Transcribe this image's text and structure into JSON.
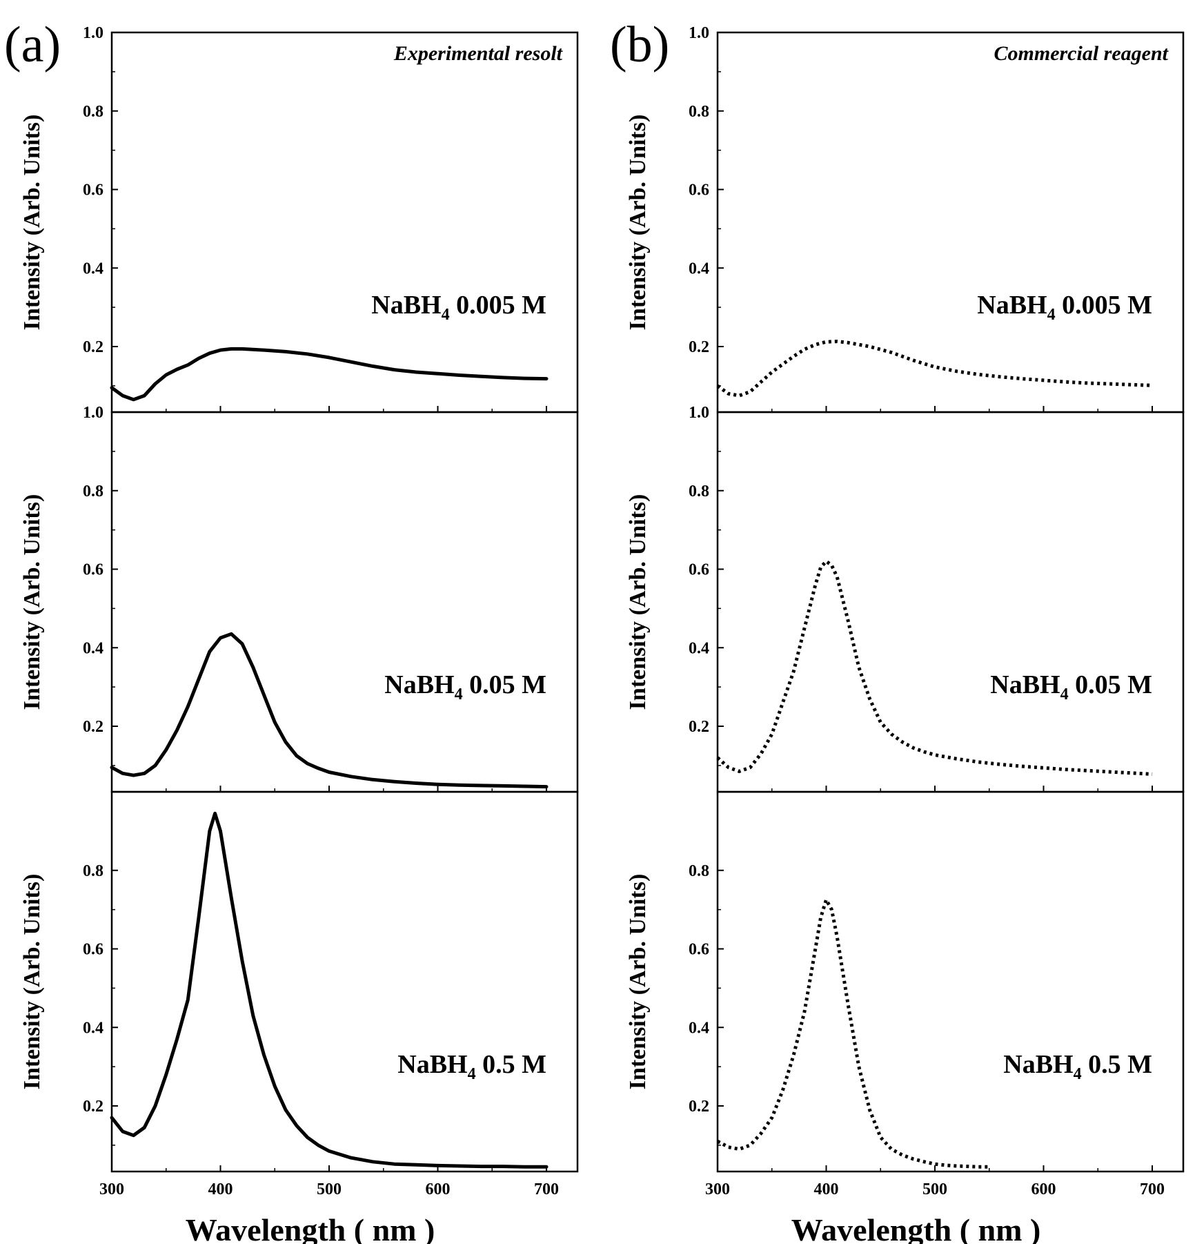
{
  "chart_data": [
    {
      "type": "line",
      "panel": "(a)",
      "column": 0,
      "row": 0,
      "corner_note": "Experimental resolt",
      "series_label": {
        "prefix": "NaBH",
        "sub": "4",
        "suffix": " 0.005 M"
      },
      "line_style": "solid",
      "ylabel": "Intensity (Arb. Units)",
      "xlabel": "",
      "xlim": [
        300,
        730
      ],
      "ylim": [
        0.04,
        1.0
      ],
      "xticks": [
        300,
        400,
        500,
        600,
        700
      ],
      "show_xtick_labels": false,
      "yticks": [
        1.0,
        0.8,
        0.6,
        0.4,
        0.2
      ],
      "ytick_labels": [
        "1.0",
        "0.8",
        "0.6",
        "0.4",
        "0.2"
      ],
      "series": [
        {
          "name": "NaBH4 0.005 M",
          "x": [
            300,
            310,
            320,
            330,
            340,
            350,
            360,
            370,
            380,
            390,
            400,
            410,
            420,
            440,
            460,
            480,
            500,
            520,
            540,
            560,
            580,
            600,
            620,
            640,
            660,
            680,
            700
          ],
          "y": [
            0.095,
            0.075,
            0.065,
            0.075,
            0.105,
            0.128,
            0.142,
            0.153,
            0.17,
            0.183,
            0.191,
            0.194,
            0.194,
            0.191,
            0.187,
            0.181,
            0.172,
            0.161,
            0.15,
            0.141,
            0.135,
            0.131,
            0.127,
            0.124,
            0.121,
            0.119,
            0.118
          ]
        }
      ]
    },
    {
      "type": "line",
      "panel": "",
      "column": 0,
      "row": 1,
      "corner_note": "",
      "series_label": {
        "prefix": "NaBH",
        "sub": "4",
        "suffix": " 0.05 M"
      },
      "line_style": "solid",
      "ylabel": "Intensity (Arb. Units)",
      "xlabel": "",
      "xlim": [
        300,
        730
      ],
      "ylim": [
        0.04,
        1.0
      ],
      "xticks": [
        300,
        400,
        500,
        600,
        700
      ],
      "show_xtick_labels": false,
      "yticks": [
        1.0,
        0.8,
        0.6,
        0.4,
        0.2
      ],
      "ytick_labels": [
        "1.0",
        "0.8",
        "0.6",
        "0.4",
        "0.2"
      ],
      "series": [
        {
          "name": "NaBH4 0.05 M",
          "x": [
            300,
            310,
            320,
            330,
            340,
            350,
            360,
            370,
            380,
            390,
            400,
            410,
            420,
            430,
            440,
            450,
            460,
            470,
            480,
            490,
            500,
            520,
            540,
            560,
            580,
            600,
            620,
            640,
            660,
            680,
            700
          ],
          "y": [
            0.095,
            0.08,
            0.075,
            0.08,
            0.1,
            0.14,
            0.19,
            0.25,
            0.32,
            0.39,
            0.425,
            0.435,
            0.41,
            0.35,
            0.28,
            0.21,
            0.16,
            0.125,
            0.105,
            0.093,
            0.083,
            0.072,
            0.064,
            0.059,
            0.055,
            0.052,
            0.05,
            0.049,
            0.048,
            0.047,
            0.046
          ]
        }
      ]
    },
    {
      "type": "line",
      "panel": "",
      "column": 0,
      "row": 2,
      "corner_note": "",
      "series_label": {
        "prefix": "NaBH",
        "sub": "4",
        "suffix": " 0.5 M"
      },
      "line_style": "solid",
      "ylabel": "Intensity (Arb. Units)",
      "xlabel": "Wavelength ( nm )",
      "xlim": [
        300,
        730
      ],
      "ylim": [
        0.04,
        1.0
      ],
      "xticks": [
        300,
        400,
        500,
        600,
        700
      ],
      "show_xtick_labels": true,
      "xtick_labels": [
        "300",
        "400",
        "500",
        "600",
        "700"
      ],
      "yticks": [
        0.8,
        0.6,
        0.4,
        0.2
      ],
      "ytick_labels": [
        "0.8",
        "0.6",
        "0.4",
        "0.2"
      ],
      "series": [
        {
          "name": "NaBH4 0.5 M",
          "x": [
            300,
            310,
            320,
            330,
            340,
            350,
            360,
            370,
            380,
            390,
            395,
            400,
            410,
            420,
            430,
            440,
            450,
            460,
            470,
            480,
            490,
            500,
            520,
            540,
            560,
            580,
            600,
            620,
            640,
            660,
            680,
            700
          ],
          "y": [
            0.17,
            0.135,
            0.125,
            0.145,
            0.2,
            0.28,
            0.37,
            0.47,
            0.68,
            0.9,
            0.945,
            0.9,
            0.73,
            0.57,
            0.43,
            0.33,
            0.25,
            0.19,
            0.15,
            0.12,
            0.1,
            0.085,
            0.068,
            0.058,
            0.052,
            0.05,
            0.048,
            0.047,
            0.046,
            0.046,
            0.045,
            0.045
          ]
        }
      ]
    },
    {
      "type": "line",
      "panel": "(b)",
      "column": 1,
      "row": 0,
      "corner_note": "Commercial reagent",
      "series_label": {
        "prefix": "NaBH",
        "sub": "4",
        "suffix": " 0.005 M"
      },
      "line_style": "dotted",
      "ylabel": "Intensity (Arb. Units)",
      "xlabel": "",
      "xlim": [
        300,
        730
      ],
      "ylim": [
        0.04,
        1.0
      ],
      "xticks": [
        300,
        400,
        500,
        600,
        700
      ],
      "show_xtick_labels": false,
      "yticks": [
        1.0,
        0.8,
        0.6,
        0.4,
        0.2
      ],
      "ytick_labels": [
        "1.0",
        "0.8",
        "0.6",
        "0.4",
        "0.2"
      ],
      "series": [
        {
          "name": "NaBH4 0.005 M",
          "x": [
            300,
            310,
            320,
            330,
            340,
            350,
            360,
            370,
            380,
            390,
            400,
            410,
            420,
            440,
            460,
            480,
            500,
            520,
            540,
            560,
            580,
            600,
            620,
            640,
            660,
            680,
            700
          ],
          "y": [
            0.1,
            0.08,
            0.075,
            0.085,
            0.11,
            0.135,
            0.155,
            0.175,
            0.193,
            0.205,
            0.212,
            0.213,
            0.21,
            0.2,
            0.185,
            0.165,
            0.148,
            0.137,
            0.129,
            0.123,
            0.118,
            0.114,
            0.11,
            0.107,
            0.105,
            0.103,
            0.101
          ]
        }
      ]
    },
    {
      "type": "line",
      "panel": "",
      "column": 1,
      "row": 1,
      "corner_note": "",
      "series_label": {
        "prefix": "NaBH",
        "sub": "4",
        "suffix": " 0.05 M"
      },
      "line_style": "dotted",
      "ylabel": "Intensity (Arb. Units)",
      "xlabel": "",
      "xlim": [
        300,
        730
      ],
      "ylim": [
        0.04,
        1.0
      ],
      "xticks": [
        300,
        400,
        500,
        600,
        700
      ],
      "show_xtick_labels": false,
      "yticks": [
        1.0,
        0.8,
        0.6,
        0.4,
        0.2
      ],
      "ytick_labels": [
        "1.0",
        "0.8",
        "0.6",
        "0.4",
        "0.2"
      ],
      "series": [
        {
          "name": "NaBH4 0.05 M",
          "x": [
            300,
            310,
            320,
            330,
            340,
            350,
            360,
            370,
            380,
            390,
            395,
            400,
            405,
            410,
            420,
            430,
            440,
            450,
            460,
            470,
            480,
            490,
            500,
            520,
            540,
            560,
            580,
            600,
            620,
            640,
            660,
            680,
            700
          ],
          "y": [
            0.12,
            0.095,
            0.085,
            0.095,
            0.13,
            0.18,
            0.26,
            0.34,
            0.45,
            0.56,
            0.605,
            0.62,
            0.61,
            0.58,
            0.47,
            0.35,
            0.27,
            0.21,
            0.18,
            0.16,
            0.145,
            0.135,
            0.127,
            0.117,
            0.109,
            0.103,
            0.098,
            0.094,
            0.09,
            0.087,
            0.084,
            0.081,
            0.078
          ]
        }
      ]
    },
    {
      "type": "line",
      "panel": "",
      "column": 1,
      "row": 2,
      "corner_note": "",
      "series_label": {
        "prefix": "NaBH",
        "sub": "4",
        "suffix": " 0.5 M"
      },
      "line_style": "dotted",
      "ylabel": "Intensity (Arb. Units)",
      "xlabel": "Wavelength ( nm )",
      "xlim": [
        300,
        730
      ],
      "ylim": [
        0.04,
        1.0
      ],
      "xticks": [
        300,
        400,
        500,
        600,
        700
      ],
      "show_xtick_labels": true,
      "xtick_labels": [
        "300",
        "400",
        "500",
        "600",
        "700"
      ],
      "yticks": [
        0.8,
        0.6,
        0.4,
        0.2
      ],
      "ytick_labels": [
        "0.8",
        "0.6",
        "0.4",
        "0.2"
      ],
      "series": [
        {
          "name": "NaBH4 0.5 M",
          "x": [
            300,
            310,
            320,
            330,
            340,
            350,
            360,
            370,
            380,
            390,
            395,
            400,
            405,
            410,
            420,
            430,
            440,
            450,
            460,
            470,
            480,
            490,
            500,
            510,
            520,
            530,
            540,
            550
          ],
          "y": [
            0.11,
            0.095,
            0.09,
            0.1,
            0.13,
            0.17,
            0.24,
            0.33,
            0.44,
            0.6,
            0.68,
            0.725,
            0.7,
            0.63,
            0.46,
            0.3,
            0.19,
            0.12,
            0.09,
            0.075,
            0.065,
            0.058,
            0.052,
            0.049,
            0.047,
            0.046,
            0.045,
            0.045
          ]
        }
      ]
    }
  ]
}
